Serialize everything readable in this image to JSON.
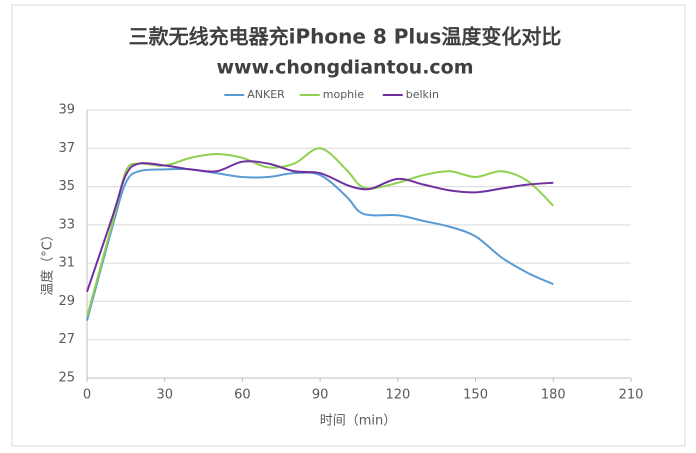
{
  "chart_data": {
    "type": "line",
    "title": "三款无线充电器充iPhone 8 Plus温度变化对比",
    "subtitle": "www.chongdiantou.com",
    "x_label": "时间（min）",
    "y_label": "温度（°C）",
    "x": [
      0,
      10,
      15,
      20,
      30,
      40,
      50,
      60,
      70,
      80,
      90,
      100,
      105,
      110,
      120,
      130,
      140,
      150,
      160,
      170,
      180
    ],
    "series": [
      {
        "name": "ANKER",
        "color": "#5b9bd5",
        "values": [
          28,
          33,
          35.2,
          35.8,
          35.9,
          35.9,
          35.7,
          35.5,
          35.5,
          35.7,
          35.6,
          34.5,
          33.7,
          33.5,
          33.5,
          33.2,
          32.9,
          32.4,
          31.3,
          30.5,
          29.9
        ]
      },
      {
        "name": "mophie",
        "color": "#8fd14f",
        "values": [
          28.2,
          33.2,
          35.8,
          36.2,
          36.1,
          36.5,
          36.7,
          36.5,
          36.0,
          36.2,
          37.0,
          35.9,
          35.1,
          34.9,
          35.2,
          35.6,
          35.8,
          35.5,
          35.8,
          35.3,
          34.0
        ]
      },
      {
        "name": "belkin",
        "color": "#7030a0",
        "values": [
          29.5,
          33.5,
          35.6,
          36.2,
          36.1,
          35.9,
          35.8,
          36.3,
          36.2,
          35.8,
          35.7,
          35.1,
          34.9,
          34.9,
          35.4,
          35.1,
          34.8,
          34.7,
          34.9,
          35.1,
          35.2
        ]
      }
    ],
    "xlim": [
      0,
      210
    ],
    "xticks": [
      0,
      30,
      60,
      90,
      120,
      150,
      180,
      210
    ],
    "ylim": [
      25,
      39
    ],
    "yticks": [
      25,
      27,
      29,
      31,
      33,
      35,
      37,
      39
    ],
    "grid": true,
    "legend": "top"
  }
}
